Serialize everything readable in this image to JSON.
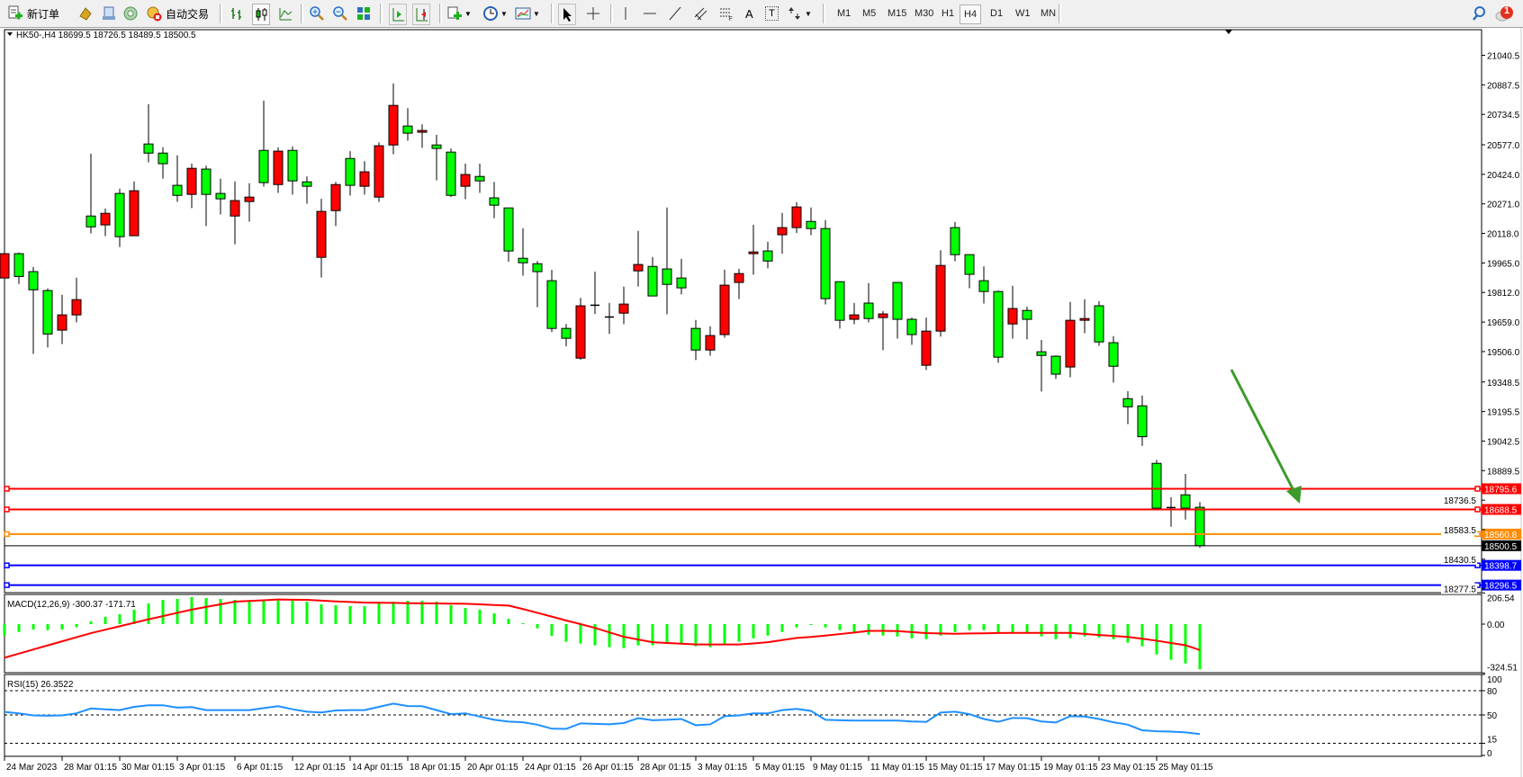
{
  "toolbar": {
    "new_order_label": "新订单",
    "auto_trading_label": "自动交易",
    "timeframes": [
      "M1",
      "M5",
      "M15",
      "M30",
      "H1",
      "H4",
      "D1",
      "W1",
      "MN"
    ],
    "active_timeframe": "H4",
    "notification_count": "1",
    "line_tools": {
      "text_label": "A",
      "text_box_label": "T"
    }
  },
  "chart": {
    "header": "HK50-,H4  18699.5 18726.5 18489.5 18500.5",
    "colors": {
      "bear": "#00ff00",
      "bull": "#ff0000",
      "doji": "#000000",
      "arrow": "#3c9b2a"
    },
    "price_ticks": [
      "21040.5",
      "20887.5",
      "20734.5",
      "20577.0",
      "20424.0",
      "20271.0",
      "20118.0",
      "19965.0",
      "19812.0",
      "19659.0",
      "19506.0",
      "19348.5",
      "19195.5",
      "19042.5",
      "18889.5",
      "18736.5",
      "18583.5",
      "18430.5",
      "18277.5"
    ],
    "time_labels": [
      "24 Mar 2023",
      "28 Mar 01:15",
      "30 Mar 01:15",
      "3 Apr 01:15",
      "6 Apr 01:15",
      "12 Apr 01:15",
      "14 Apr 01:15",
      "18 Apr 01:15",
      "20 Apr 01:15",
      "24 Apr 01:15",
      "26 Apr 01:15",
      "28 Apr 01:15",
      "3 May 01:15",
      "5 May 01:15",
      "9 May 01:15",
      "11 May 01:15",
      "15 May 01:15",
      "17 May 01:15",
      "19 May 01:15",
      "23 May 01:15",
      "25 May 01:15"
    ],
    "hlines": [
      {
        "price": 18795.6,
        "label": "18795.6",
        "color": "#ff0000"
      },
      {
        "price": 18688.5,
        "label": "18688.5",
        "color": "#ff0000"
      },
      {
        "price": 18560.8,
        "label": "18560.8",
        "color": "#ff8c00"
      },
      {
        "price": 18500.5,
        "label": "18500.5",
        "color": "#000000"
      },
      {
        "price": 18398.7,
        "label": "18398.7",
        "color": "#0000ff"
      },
      {
        "price": 18296.5,
        "label": "18296.5",
        "color": "#0000ff"
      }
    ]
  },
  "chart_data": [
    {
      "type": "candlestick",
      "title": "HK50-,H4",
      "ohlc_order": [
        "open",
        "high",
        "low",
        "close"
      ],
      "candles": [
        [
          19887,
          20125,
          19840,
          20013
        ],
        [
          20013,
          20019,
          19856,
          19895
        ],
        [
          19920,
          19944,
          19494,
          19826
        ],
        [
          19822,
          19833,
          19527,
          19597
        ],
        [
          19617,
          19800,
          19545,
          19696
        ],
        [
          19696,
          19889,
          19657,
          19775
        ],
        [
          20208,
          20531,
          20118,
          20152
        ],
        [
          20162,
          20247,
          20104,
          20222
        ],
        [
          20325,
          20350,
          20048,
          20101
        ],
        [
          20106,
          20387,
          20106,
          20339
        ],
        [
          20581,
          20787,
          20486,
          20534
        ],
        [
          20534,
          20564,
          20402,
          20479
        ],
        [
          20367,
          20522,
          20281,
          20315
        ],
        [
          20320,
          20480,
          20249,
          20455
        ],
        [
          20451,
          20469,
          20156,
          20320
        ],
        [
          20325,
          20401,
          20216,
          20297
        ],
        [
          20208,
          20387,
          20062,
          20288
        ],
        [
          20283,
          20378,
          20179,
          20306
        ],
        [
          20548,
          20806,
          20361,
          20381
        ],
        [
          20371,
          20564,
          20328,
          20544
        ],
        [
          20548,
          20569,
          20319,
          20390
        ],
        [
          20385,
          20413,
          20272,
          20362
        ],
        [
          19994,
          20297,
          19890,
          20232
        ],
        [
          20236,
          20385,
          20156,
          20371
        ],
        [
          20506,
          20544,
          20314,
          20367
        ],
        [
          20362,
          20492,
          20319,
          20437
        ],
        [
          20306,
          20590,
          20281,
          20572
        ],
        [
          20576,
          20895,
          20528,
          20781
        ],
        [
          20674,
          20767,
          20598,
          20637
        ],
        [
          20642,
          20683,
          20561,
          20651
        ],
        [
          20576,
          20628,
          20393,
          20558
        ],
        [
          20539,
          20558,
          20306,
          20315
        ],
        [
          20362,
          20479,
          20295,
          20423
        ],
        [
          20413,
          20479,
          20328,
          20390
        ],
        [
          20302,
          20385,
          20197,
          20264
        ],
        [
          20250,
          20250,
          19971,
          20027
        ],
        [
          19989,
          20145,
          19899,
          19966
        ],
        [
          19961,
          19975,
          19736,
          19920
        ],
        [
          19873,
          19929,
          19607,
          19626
        ],
        [
          19626,
          19649,
          19533,
          19575
        ],
        [
          19472,
          19784,
          19463,
          19743
        ],
        [
          19746,
          19920,
          19701,
          19746
        ],
        [
          19685,
          19758,
          19597,
          19685
        ],
        [
          19705,
          19842,
          19648,
          19752
        ],
        [
          19924,
          20131,
          19843,
          19957
        ],
        [
          19947,
          19996,
          19794,
          19794
        ],
        [
          19934,
          20252,
          19699,
          19854
        ],
        [
          19887,
          19986,
          19802,
          19836
        ],
        [
          19626,
          19670,
          19462,
          19514
        ],
        [
          19514,
          19637,
          19485,
          19589
        ],
        [
          19594,
          19930,
          19578,
          19850
        ],
        [
          19864,
          19935,
          19778,
          19910
        ],
        [
          20013,
          20163,
          19904,
          20022
        ],
        [
          20027,
          20075,
          19937,
          19975
        ],
        [
          20111,
          20224,
          20013,
          20148
        ],
        [
          20148,
          20280,
          20120,
          20255
        ],
        [
          20180,
          20252,
          20109,
          20143
        ],
        [
          20143,
          20187,
          19750,
          19780
        ],
        [
          19868,
          19868,
          19625,
          19668
        ],
        [
          19673,
          19758,
          19648,
          19696
        ],
        [
          19757,
          19861,
          19657,
          19677
        ],
        [
          19682,
          19716,
          19513,
          19701
        ],
        [
          19864,
          19864,
          19573,
          19673
        ],
        [
          19673,
          19682,
          19541,
          19594
        ],
        [
          19435,
          19682,
          19410,
          19612
        ],
        [
          19612,
          20031,
          19583,
          19952
        ],
        [
          20148,
          20177,
          19974,
          20008
        ],
        [
          20008,
          20008,
          19834,
          19906
        ],
        [
          19873,
          19947,
          19755,
          19817
        ],
        [
          19817,
          19822,
          19448,
          19477
        ],
        [
          19649,
          19847,
          19573,
          19729
        ],
        [
          19719,
          19738,
          19569,
          19673
        ],
        [
          19505,
          19566,
          19299,
          19486
        ],
        [
          19482,
          19486,
          19364,
          19389
        ],
        [
          19426,
          19763,
          19373,
          19668
        ],
        [
          19668,
          19777,
          19601,
          19677
        ],
        [
          19743,
          19767,
          19536,
          19556
        ],
        [
          19552,
          19586,
          19345,
          19430
        ],
        [
          19262,
          19301,
          19130,
          19220
        ],
        [
          19225,
          19278,
          19018,
          19065
        ],
        [
          18927,
          18945,
          18695,
          18695
        ],
        [
          18698,
          18751,
          18599,
          18698
        ],
        [
          18764,
          18872,
          18636,
          18695
        ],
        [
          18699.5,
          18726.5,
          18489.5,
          18500.5
        ]
      ],
      "ylim": [
        18277.5,
        21040.5
      ]
    },
    {
      "type": "bar+line",
      "title": "MACD(12,26,9) -300.37 -171.71",
      "ticks": [
        "206.54",
        "0.00",
        "-324.51"
      ],
      "ylim": [
        -324.51,
        206.54
      ],
      "histogram": [
        -76,
        -52,
        -36,
        -40,
        -36,
        -20,
        18,
        48,
        66,
        96,
        137,
        161,
        167,
        179,
        173,
        167,
        161,
        155,
        155,
        155,
        155,
        149,
        131,
        125,
        119,
        119,
        137,
        149,
        155,
        155,
        149,
        125,
        107,
        96,
        72,
        36,
        6,
        -28,
        -78,
        -117,
        -129,
        -141,
        -153,
        -159,
        -141,
        -141,
        -129,
        -135,
        -147,
        -153,
        -135,
        -117,
        -94,
        -76,
        -52,
        -22,
        -4,
        -22,
        -40,
        -52,
        -70,
        -76,
        -82,
        -94,
        -100,
        -76,
        -52,
        -40,
        -40,
        -58,
        -58,
        -58,
        -82,
        -100,
        -94,
        -82,
        -88,
        -100,
        -123,
        -147,
        -201,
        -237,
        -261,
        -300.37
      ],
      "signal": [
        -223,
        -196,
        -168,
        -141,
        -114,
        -87,
        -60,
        -37,
        -14,
        9,
        32,
        53,
        75,
        96,
        114,
        131,
        149,
        154,
        158,
        163,
        162,
        161,
        156,
        151,
        147,
        143,
        142,
        141,
        139,
        138,
        137,
        136,
        135,
        131,
        127,
        123,
        100,
        75,
        50,
        24,
        0,
        -25,
        -55,
        -84,
        -102,
        -120,
        -125,
        -130,
        -135,
        -135,
        -135,
        -135,
        -128,
        -120,
        -106,
        -92,
        -85,
        -76,
        -66,
        -56,
        -45,
        -45,
        -46,
        -53,
        -60,
        -62,
        -64,
        -62,
        -61,
        -59,
        -58,
        -58,
        -58,
        -58,
        -58,
        -65,
        -72,
        -78,
        -85,
        -97,
        -110,
        -125,
        -140,
        -171.71
      ]
    },
    {
      "type": "line",
      "title": "RSI(15) 26.3522",
      "ticks": [
        "100",
        "80",
        "50",
        "15",
        "0"
      ],
      "levels": [
        80,
        50,
        15
      ],
      "ylim": [
        0,
        100
      ],
      "values": [
        53.7,
        52,
        49.5,
        49,
        49.5,
        52,
        58,
        57,
        56,
        60,
        62,
        62,
        59,
        59.7,
        56,
        56,
        56,
        56,
        58.5,
        60.8,
        57,
        54,
        53,
        55.5,
        56,
        56,
        60,
        64,
        61,
        60.8,
        56,
        51,
        52,
        48,
        44,
        41.8,
        41,
        38,
        33,
        32.8,
        39.6,
        39,
        38.5,
        40,
        46,
        43.5,
        44,
        45,
        37.3,
        38.4,
        48.5,
        49.5,
        51.9,
        51.9,
        56,
        57.5,
        55,
        44,
        43.5,
        43,
        43,
        43,
        43,
        42,
        41.4,
        53,
        54,
        51,
        45,
        41.5,
        46.3,
        46,
        42,
        40.7,
        48.5,
        48,
        45,
        41,
        38,
        31,
        29.9,
        29.5,
        28.5,
        26.3522
      ]
    }
  ]
}
